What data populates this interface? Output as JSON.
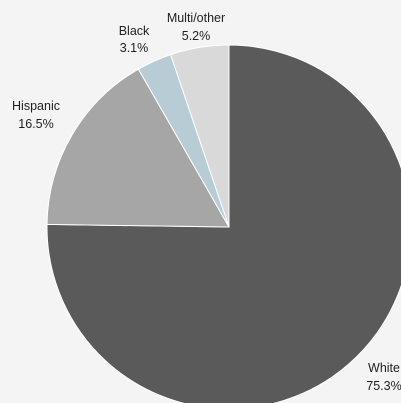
{
  "chart_data": {
    "type": "pie",
    "slices": [
      {
        "label": "White",
        "value": 75.3,
        "value_label": "75.3%",
        "color": "#5a5a5a"
      },
      {
        "label": "Hispanic",
        "value": 16.5,
        "value_label": "16.5%",
        "color": "#a6a6a6"
      },
      {
        "label": "Black",
        "value": 3.1,
        "value_label": "3.1%",
        "color": "#b8ccd6"
      },
      {
        "label": "Multi/other",
        "value": 5.2,
        "value_label": "5.2%",
        "color": "#d9d9d9"
      }
    ],
    "start_angle_deg": 0,
    "direction": "clockwise",
    "background": "#f4f4f4"
  }
}
